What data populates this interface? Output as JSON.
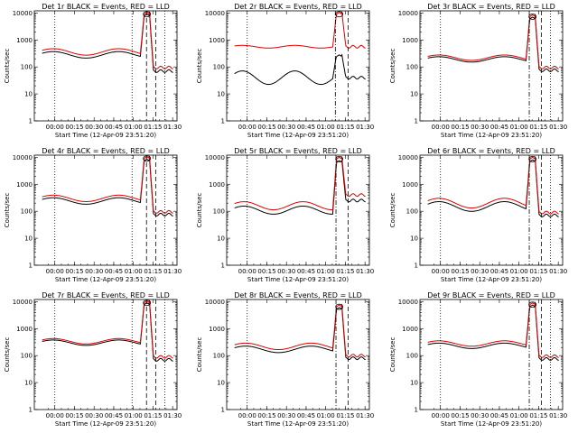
{
  "figure": {
    "colors": {
      "events": "#000000",
      "lld": "#dd0000",
      "axis": "#000000"
    }
  },
  "chart_data": [
    {
      "type": "line",
      "title": "Det 1r BLACK = Events, RED = LLD",
      "xlabel": "Start Time (12-Apr-09 23:51:20)",
      "ylabel": "Counts/sec",
      "x_ticks": [
        8.67,
        23.67,
        38.67,
        53.67,
        68.67,
        83.67,
        98.67
      ],
      "x_tick_labels": [
        "00:00",
        "00:15",
        "00:30",
        "00:45",
        "01:00",
        "01:15",
        "01:30"
      ],
      "xlim": [
        -7,
        102
      ],
      "y_scale": "log",
      "ylim": [
        1,
        12000
      ],
      "y_ticks": [
        1,
        10,
        100,
        1000,
        10000
      ],
      "y_tick_labels": [
        "1",
        "10",
        "100",
        "1000",
        "10000"
      ],
      "dotted_lines_x": [
        8.67,
        67.67,
        92.67
      ],
      "dashed_lines_x": [
        78.7,
        85.7
      ],
      "dashdot_lines_x": [],
      "series": [
        {
          "name": "Events",
          "color": "#000000",
          "base": 280,
          "wave_amp": 0.12,
          "wave_period": 50,
          "peak": 9000,
          "after": 70
        },
        {
          "name": "LLD",
          "color": "#dd0000",
          "base": 360,
          "wave_amp": 0.12,
          "wave_period": 50,
          "peak": 10500,
          "after": 95
        }
      ]
    },
    {
      "type": "line",
      "title": "Det 2r BLACK = Events, RED = LLD",
      "xlabel": "Start Time (12-Apr-09 23:51:20)",
      "ylabel": "Counts/sec",
      "x_ticks": [
        8.67,
        23.67,
        38.67,
        53.67,
        68.67,
        83.67,
        98.67
      ],
      "x_tick_labels": [
        "00:00",
        "00:15",
        "00:30",
        "00:45",
        "01:00",
        "01:15",
        "01:30"
      ],
      "xlim": [
        -7,
        102
      ],
      "y_scale": "log",
      "ylim": [
        1,
        12000
      ],
      "y_ticks": [
        1,
        10,
        100,
        1000,
        10000
      ],
      "y_tick_labels": [
        "1",
        "10",
        "100",
        "1000",
        "10000"
      ],
      "dotted_lines_x": [
        8.67
      ],
      "dashed_lines_x": [
        85.7
      ],
      "dashdot_lines_x": [
        76.0
      ],
      "series": [
        {
          "name": "Events",
          "color": "#000000",
          "base": 40,
          "wave_amp": 0.25,
          "wave_period": 40,
          "peak": 280,
          "after": 40
        },
        {
          "name": "LLD",
          "color": "#dd0000",
          "base": 560,
          "wave_amp": 0.05,
          "wave_period": 40,
          "peak": 10500,
          "after": 560
        }
      ]
    },
    {
      "type": "line",
      "title": "Det 3r BLACK = Events, RED = LLD",
      "xlabel": "Start Time (12-Apr-09 23:51:20)",
      "ylabel": "Counts/sec",
      "x_ticks": [
        8.67,
        23.67,
        38.67,
        53.67,
        68.67,
        83.67,
        98.67
      ],
      "x_tick_labels": [
        "00:00",
        "00:15",
        "00:30",
        "00:45",
        "01:00",
        "01:15",
        "01:30"
      ],
      "xlim": [
        -7,
        102
      ],
      "y_scale": "log",
      "ylim": [
        1,
        12000
      ],
      "y_ticks": [
        1,
        10,
        100,
        1000,
        10000
      ],
      "y_tick_labels": [
        "1",
        "10",
        "100",
        "1000",
        "10000"
      ],
      "dotted_lines_x": [
        8.67,
        92.67
      ],
      "dashed_lines_x": [
        85.7
      ],
      "dashdot_lines_x": [
        76.5
      ],
      "series": [
        {
          "name": "Events",
          "color": "#000000",
          "base": 190,
          "wave_amp": 0.1,
          "wave_period": 50,
          "peak": 7000,
          "after": 75
        },
        {
          "name": "LLD",
          "color": "#dd0000",
          "base": 220,
          "wave_amp": 0.1,
          "wave_period": 50,
          "peak": 8500,
          "after": 95
        }
      ]
    },
    {
      "type": "line",
      "title": "Det 4r BLACK = Events, RED = LLD",
      "xlabel": "Start Time (12-Apr-09 23:51:20)",
      "ylabel": "Counts/sec",
      "x_ticks": [
        8.67,
        23.67,
        38.67,
        53.67,
        68.67,
        83.67,
        98.67
      ],
      "x_tick_labels": [
        "00:00",
        "00:15",
        "00:30",
        "00:45",
        "01:00",
        "01:15",
        "01:30"
      ],
      "xlim": [
        -7,
        102
      ],
      "y_scale": "log",
      "ylim": [
        1,
        12000
      ],
      "y_ticks": [
        1,
        10,
        100,
        1000,
        10000
      ],
      "y_tick_labels": [
        "1",
        "10",
        "100",
        "1000",
        "10000"
      ],
      "dotted_lines_x": [
        8.67,
        67.67,
        92.67
      ],
      "dashed_lines_x": [
        78.7,
        85.7
      ],
      "dashdot_lines_x": [],
      "series": [
        {
          "name": "Events",
          "color": "#000000",
          "base": 240,
          "wave_amp": 0.12,
          "wave_period": 50,
          "peak": 8500,
          "after": 75
        },
        {
          "name": "LLD",
          "color": "#dd0000",
          "base": 300,
          "wave_amp": 0.12,
          "wave_period": 50,
          "peak": 10500,
          "after": 95
        }
      ]
    },
    {
      "type": "line",
      "title": "Det 5r BLACK = Events, RED = LLD",
      "xlabel": "Start Time (12-Apr-09 23:51:20)",
      "ylabel": "Counts/sec",
      "x_ticks": [
        8.67,
        23.67,
        38.67,
        53.67,
        68.67,
        83.67,
        98.67
      ],
      "x_tick_labels": [
        "00:00",
        "00:15",
        "00:30",
        "00:45",
        "01:00",
        "01:15",
        "01:30"
      ],
      "xlim": [
        -7,
        102
      ],
      "y_scale": "log",
      "ylim": [
        1,
        12000
      ],
      "y_ticks": [
        1,
        10,
        100,
        1000,
        10000
      ],
      "y_tick_labels": [
        "1",
        "10",
        "100",
        "1000",
        "10000"
      ],
      "dotted_lines_x": [
        8.67
      ],
      "dashed_lines_x": [
        85.7
      ],
      "dashdot_lines_x": [
        76.5
      ],
      "series": [
        {
          "name": "Events",
          "color": "#000000",
          "base": 110,
          "wave_amp": 0.15,
          "wave_period": 45,
          "peak": 7500,
          "after": 250
        },
        {
          "name": "LLD",
          "color": "#dd0000",
          "base": 160,
          "wave_amp": 0.15,
          "wave_period": 45,
          "peak": 10000,
          "after": 400
        }
      ]
    },
    {
      "type": "line",
      "title": "Det 6r BLACK = Events, RED = LLD",
      "xlabel": "Start Time (12-Apr-09 23:51:20)",
      "ylabel": "Counts/sec",
      "x_ticks": [
        8.67,
        23.67,
        38.67,
        53.67,
        68.67,
        83.67,
        98.67
      ],
      "x_tick_labels": [
        "00:00",
        "00:15",
        "00:30",
        "00:45",
        "01:00",
        "01:15",
        "01:30"
      ],
      "xlim": [
        -7,
        102
      ],
      "y_scale": "log",
      "ylim": [
        1,
        12000
      ],
      "y_ticks": [
        1,
        10,
        100,
        1000,
        10000
      ],
      "y_tick_labels": [
        "1",
        "10",
        "100",
        "1000",
        "10000"
      ],
      "dotted_lines_x": [
        8.67,
        92.67
      ],
      "dashed_lines_x": [
        85.7
      ],
      "dashdot_lines_x": [
        76.5
      ],
      "series": [
        {
          "name": "Events",
          "color": "#000000",
          "base": 150,
          "wave_amp": 0.18,
          "wave_period": 50,
          "peak": 8000,
          "after": 70
        },
        {
          "name": "LLD",
          "color": "#dd0000",
          "base": 200,
          "wave_amp": 0.18,
          "wave_period": 50,
          "peak": 10000,
          "after": 90
        }
      ]
    },
    {
      "type": "line",
      "title": "Det 7r BLACK = Events, RED = LLD",
      "xlabel": "Start Time (12-Apr-09 23:51:20)",
      "ylabel": "Counts/sec",
      "x_ticks": [
        8.67,
        23.67,
        38.67,
        53.67,
        68.67,
        83.67,
        98.67
      ],
      "x_tick_labels": [
        "00:00",
        "00:15",
        "00:30",
        "00:45",
        "01:00",
        "01:15",
        "01:30"
      ],
      "xlim": [
        -7,
        102
      ],
      "y_scale": "log",
      "ylim": [
        1,
        12000
      ],
      "y_ticks": [
        1,
        10,
        100,
        1000,
        10000
      ],
      "y_tick_labels": [
        "1",
        "10",
        "100",
        "1000",
        "10000"
      ],
      "dotted_lines_x": [
        8.67,
        67.67,
        92.67
      ],
      "dashed_lines_x": [
        78.7,
        85.7
      ],
      "dashdot_lines_x": [],
      "series": [
        {
          "name": "Events",
          "color": "#000000",
          "base": 300,
          "wave_amp": 0.1,
          "wave_period": 50,
          "peak": 9000,
          "after": 70
        },
        {
          "name": "LLD",
          "color": "#dd0000",
          "base": 340,
          "wave_amp": 0.1,
          "wave_period": 50,
          "peak": 10500,
          "after": 90
        }
      ]
    },
    {
      "type": "line",
      "title": "Det 8r BLACK = Events, RED = LLD",
      "xlabel": "Start Time (12-Apr-09 23:51:20)",
      "ylabel": "Counts/sec",
      "x_ticks": [
        8.67,
        23.67,
        38.67,
        53.67,
        68.67,
        83.67,
        98.67
      ],
      "x_tick_labels": [
        "00:00",
        "00:15",
        "00:30",
        "00:45",
        "01:00",
        "01:15",
        "01:30"
      ],
      "xlim": [
        -7,
        102
      ],
      "y_scale": "log",
      "ylim": [
        1,
        12000
      ],
      "y_ticks": [
        1,
        10,
        100,
        1000,
        10000
      ],
      "y_tick_labels": [
        "1",
        "10",
        "100",
        "1000",
        "10000"
      ],
      "dotted_lines_x": [
        8.67
      ],
      "dashed_lines_x": [
        85.7
      ],
      "dashdot_lines_x": [
        76.5
      ],
      "series": [
        {
          "name": "Events",
          "color": "#000000",
          "base": 170,
          "wave_amp": 0.12,
          "wave_period": 50,
          "peak": 6000,
          "after": 80
        },
        {
          "name": "LLD",
          "color": "#dd0000",
          "base": 220,
          "wave_amp": 0.12,
          "wave_period": 50,
          "peak": 7500,
          "after": 100
        }
      ]
    },
    {
      "type": "line",
      "title": "Det 9r BLACK = Events, RED = LLD",
      "xlabel": "Start Time (12-Apr-09 23:51:20)",
      "ylabel": "Counts/sec",
      "x_ticks": [
        8.67,
        23.67,
        38.67,
        53.67,
        68.67,
        83.67,
        98.67
      ],
      "x_tick_labels": [
        "00:00",
        "00:15",
        "00:30",
        "00:45",
        "01:00",
        "01:15",
        "01:30"
      ],
      "xlim": [
        -7,
        102
      ],
      "y_scale": "log",
      "ylim": [
        1,
        12000
      ],
      "y_ticks": [
        1,
        10,
        100,
        1000,
        10000
      ],
      "y_tick_labels": [
        "1",
        "10",
        "100",
        "1000",
        "10000"
      ],
      "dotted_lines_x": [
        8.67,
        92.67
      ],
      "dashed_lines_x": [
        85.7
      ],
      "dashdot_lines_x": [
        76.5
      ],
      "series": [
        {
          "name": "Events",
          "color": "#000000",
          "base": 230,
          "wave_amp": 0.1,
          "wave_period": 50,
          "peak": 7500,
          "after": 75
        },
        {
          "name": "LLD",
          "color": "#dd0000",
          "base": 280,
          "wave_amp": 0.1,
          "wave_period": 50,
          "peak": 9000,
          "after": 95
        }
      ]
    }
  ]
}
